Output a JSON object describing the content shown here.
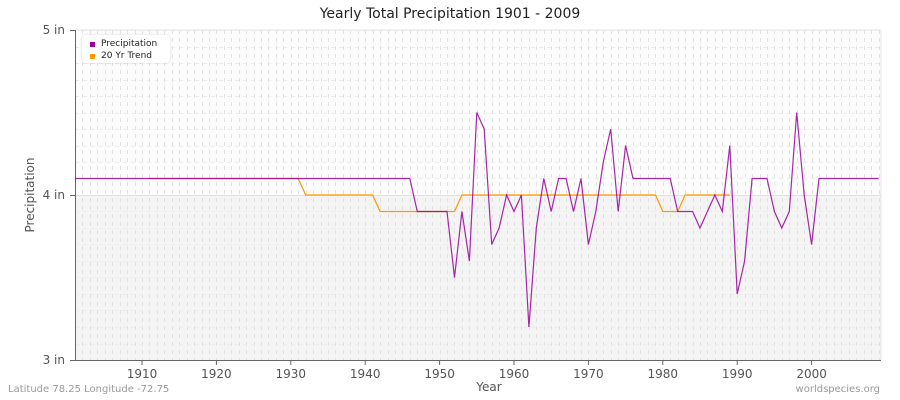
{
  "title": "Yearly Total Precipitation 1901 - 2009",
  "footer": {
    "location": "Latitude 78.25 Longitude -72.75",
    "source": "worldspecies.org"
  },
  "legend": {
    "items": [
      {
        "label": "Precipitation",
        "color": "#990099"
      },
      {
        "label": "20 Yr Trend",
        "color": "#ff9900"
      }
    ]
  },
  "axes": {
    "xlabel": "Year",
    "ylabel": "Precipitation",
    "xticks": [
      "1910",
      "1920",
      "1930",
      "1940",
      "1950",
      "1960",
      "1970",
      "1980",
      "1990",
      "2000"
    ],
    "yticks": [
      "3 in",
      "4 in",
      "5 in"
    ]
  },
  "chart_data": {
    "type": "line",
    "title": "Yearly Total Precipitation 1901 - 2009",
    "xlabel": "Year",
    "ylabel": "Precipitation",
    "xlim": [
      1901,
      2009
    ],
    "ylim": [
      3,
      5
    ],
    "yunit": "in",
    "grid": true,
    "legend_position": "top-left",
    "x": [
      1901,
      1902,
      1903,
      1904,
      1905,
      1906,
      1907,
      1908,
      1909,
      1910,
      1911,
      1912,
      1913,
      1914,
      1915,
      1916,
      1917,
      1918,
      1919,
      1920,
      1921,
      1922,
      1923,
      1924,
      1925,
      1926,
      1927,
      1928,
      1929,
      1930,
      1931,
      1932,
      1933,
      1934,
      1935,
      1936,
      1937,
      1938,
      1939,
      1940,
      1941,
      1942,
      1943,
      1944,
      1945,
      1946,
      1947,
      1948,
      1949,
      1950,
      1951,
      1952,
      1953,
      1954,
      1955,
      1956,
      1957,
      1958,
      1959,
      1960,
      1961,
      1962,
      1963,
      1964,
      1965,
      1966,
      1967,
      1968,
      1969,
      1970,
      1971,
      1972,
      1973,
      1974,
      1975,
      1976,
      1977,
      1978,
      1979,
      1980,
      1981,
      1982,
      1983,
      1984,
      1985,
      1986,
      1987,
      1988,
      1989,
      1990,
      1991,
      1992,
      1993,
      1994,
      1995,
      1996,
      1997,
      1998,
      1999,
      2000,
      2001,
      2002,
      2003,
      2004,
      2005,
      2006,
      2007,
      2008,
      2009
    ],
    "series": [
      {
        "name": "Precipitation",
        "color": "#990099",
        "values": [
          4.1,
          4.1,
          4.1,
          4.1,
          4.1,
          4.1,
          4.1,
          4.1,
          4.1,
          4.1,
          4.1,
          4.1,
          4.1,
          4.1,
          4.1,
          4.1,
          4.1,
          4.1,
          4.1,
          4.1,
          4.1,
          4.1,
          4.1,
          4.1,
          4.1,
          4.1,
          4.1,
          4.1,
          4.1,
          4.1,
          4.1,
          4.1,
          4.1,
          4.1,
          4.1,
          4.1,
          4.1,
          4.1,
          4.1,
          4.1,
          4.1,
          4.1,
          4.1,
          4.1,
          4.1,
          4.1,
          3.9,
          3.9,
          3.9,
          3.9,
          3.9,
          3.5,
          3.9,
          3.6,
          4.5,
          4.4,
          3.7,
          3.8,
          4.0,
          3.9,
          4.0,
          3.2,
          3.8,
          4.1,
          3.9,
          4.1,
          4.1,
          3.9,
          4.1,
          3.7,
          3.9,
          4.2,
          4.4,
          3.9,
          4.3,
          4.1,
          4.1,
          4.1,
          4.1,
          4.1,
          4.1,
          3.9,
          3.9,
          3.9,
          3.8,
          3.9,
          4.0,
          3.9,
          4.3,
          3.4,
          3.6,
          4.1,
          4.1,
          4.1,
          3.9,
          3.8,
          3.9,
          4.5,
          4.0,
          3.7,
          4.1,
          4.1,
          4.1,
          4.1,
          4.1,
          4.1,
          4.1,
          4.1,
          4.1
        ]
      },
      {
        "name": "20 Yr Trend",
        "color": "#ff9900",
        "x_start": 1911,
        "x_end": 1999,
        "values": [
          4.1,
          4.1,
          4.1,
          4.1,
          4.1,
          4.1,
          4.1,
          4.1,
          4.1,
          4.1,
          4.1,
          4.1,
          4.1,
          4.1,
          4.1,
          4.1,
          4.1,
          4.1,
          4.1,
          4.1,
          4.1,
          4.0,
          4.0,
          4.0,
          4.0,
          4.0,
          4.0,
          4.0,
          4.0,
          4.0,
          4.0,
          3.9,
          3.9,
          3.9,
          3.9,
          3.9,
          3.9,
          3.9,
          3.9,
          3.9,
          3.9,
          3.9,
          4.0,
          4.0,
          4.0,
          4.0,
          4.0,
          4.0,
          4.0,
          4.0,
          4.0,
          4.0,
          4.0,
          4.0,
          4.0,
          4.0,
          4.0,
          4.0,
          4.0,
          4.0,
          4.0,
          4.0,
          4.0,
          4.0,
          4.0,
          4.0,
          4.0,
          4.0,
          4.0,
          3.9,
          3.9,
          3.9,
          4.0,
          4.0,
          4.0,
          4.0,
          4.0,
          4.0,
          4.0
        ]
      }
    ]
  }
}
